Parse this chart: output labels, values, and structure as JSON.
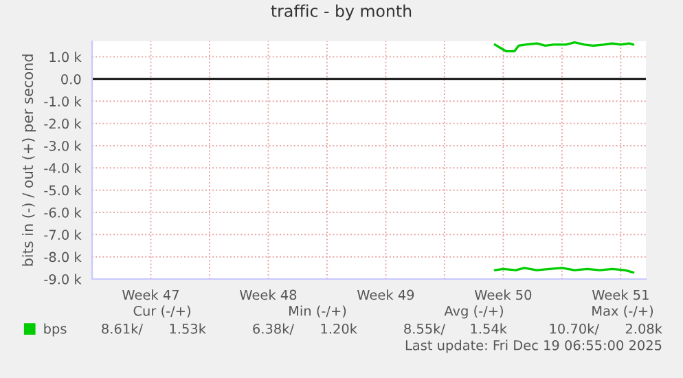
{
  "chart_data": {
    "type": "line",
    "title": "traffic - by month",
    "ylabel": "bits in (-) / out (+) per second",
    "xlim": [
      "2025-11-17",
      "2025-12-20"
    ],
    "xticks": [
      {
        "value": "2025-11-20T12:00",
        "label": "Week 47"
      },
      {
        "value": "2025-11-24",
        "label": null
      },
      {
        "value": "2025-11-27T12:00",
        "label": "Week 48"
      },
      {
        "value": "2025-12-01",
        "label": null
      },
      {
        "value": "2025-12-04T12:00",
        "label": "Week 49"
      },
      {
        "value": "2025-12-08",
        "label": null
      },
      {
        "value": "2025-12-11T12:00",
        "label": "Week 50"
      },
      {
        "value": "2025-12-15",
        "label": null
      },
      {
        "value": "2025-12-18T12:00",
        "label": "Week 51"
      }
    ],
    "ylim": [
      -9.0,
      1.7
    ],
    "yticks": [
      {
        "value": 1.0,
        "label": "1.0 k"
      },
      {
        "value": 0.0,
        "label": "0.0"
      },
      {
        "value": -1.0,
        "label": "-1.0 k"
      },
      {
        "value": -2.0,
        "label": "-2.0 k"
      },
      {
        "value": -3.0,
        "label": "-3.0 k"
      },
      {
        "value": -4.0,
        "label": "-4.0 k"
      },
      {
        "value": -5.0,
        "label": "-5.0 k"
      },
      {
        "value": -6.0,
        "label": "-6.0 k"
      },
      {
        "value": -7.0,
        "label": "-7.0 k"
      },
      {
        "value": -8.0,
        "label": "-8.0 k"
      },
      {
        "value": -9.0,
        "label": "-9.0 k"
      }
    ],
    "grid": true,
    "legend": "bottom",
    "marker": "none",
    "line_style": "solid",
    "ref_lines": [
      {
        "axis": "y",
        "value": 0,
        "color": "#000000"
      }
    ],
    "series": [
      {
        "name": "bps",
        "color": "#00cc00",
        "x": [
          "2025-12-11T00:00",
          "2025-12-11T08:00",
          "2025-12-11T16:00",
          "2025-12-12T04:00",
          "2025-12-12T10:00",
          "2025-12-12T20:00",
          "2025-12-13T12:00",
          "2025-12-14T00:00",
          "2025-12-14T12:00",
          "2025-12-15T06:00",
          "2025-12-15T18:00",
          "2025-12-16T08:00",
          "2025-12-16T20:00",
          "2025-12-17T12:00",
          "2025-12-18T00:00",
          "2025-12-18T12:00",
          "2025-12-19T00:00",
          "2025-12-19T06:00"
        ],
        "values": [
          1.55,
          1.4,
          1.25,
          1.25,
          1.5,
          1.55,
          1.6,
          1.5,
          1.55,
          1.55,
          1.65,
          1.55,
          1.5,
          1.55,
          1.6,
          1.55,
          1.6,
          1.55
        ]
      },
      {
        "color": "#00cc00",
        "x": [
          "2025-12-11T00:00",
          "2025-12-11T12:00",
          "2025-12-12T06:00",
          "2025-12-12T18:00",
          "2025-12-13T12:00",
          "2025-12-14T06:00",
          "2025-12-15T00:00",
          "2025-12-15T18:00",
          "2025-12-16T12:00",
          "2025-12-17T06:00",
          "2025-12-18T00:00",
          "2025-12-18T18:00",
          "2025-12-19T06:00"
        ],
        "values": [
          -8.6,
          -8.55,
          -8.6,
          -8.5,
          -8.6,
          -8.55,
          -8.5,
          -8.6,
          -8.55,
          -8.6,
          -8.55,
          -8.6,
          -8.7
        ]
      }
    ],
    "annotations": [
      "Cur (-/+)",
      "Min (-/+)",
      "Avg (-/+)",
      "Max (-/+)",
      "8.61k/",
      "1.53k",
      "6.38k/",
      "1.20k",
      "8.55k/",
      "1.54k",
      "10.70k/",
      "2.08k",
      "Last update: Fri Dec 19 06:55:00 2025"
    ]
  }
}
